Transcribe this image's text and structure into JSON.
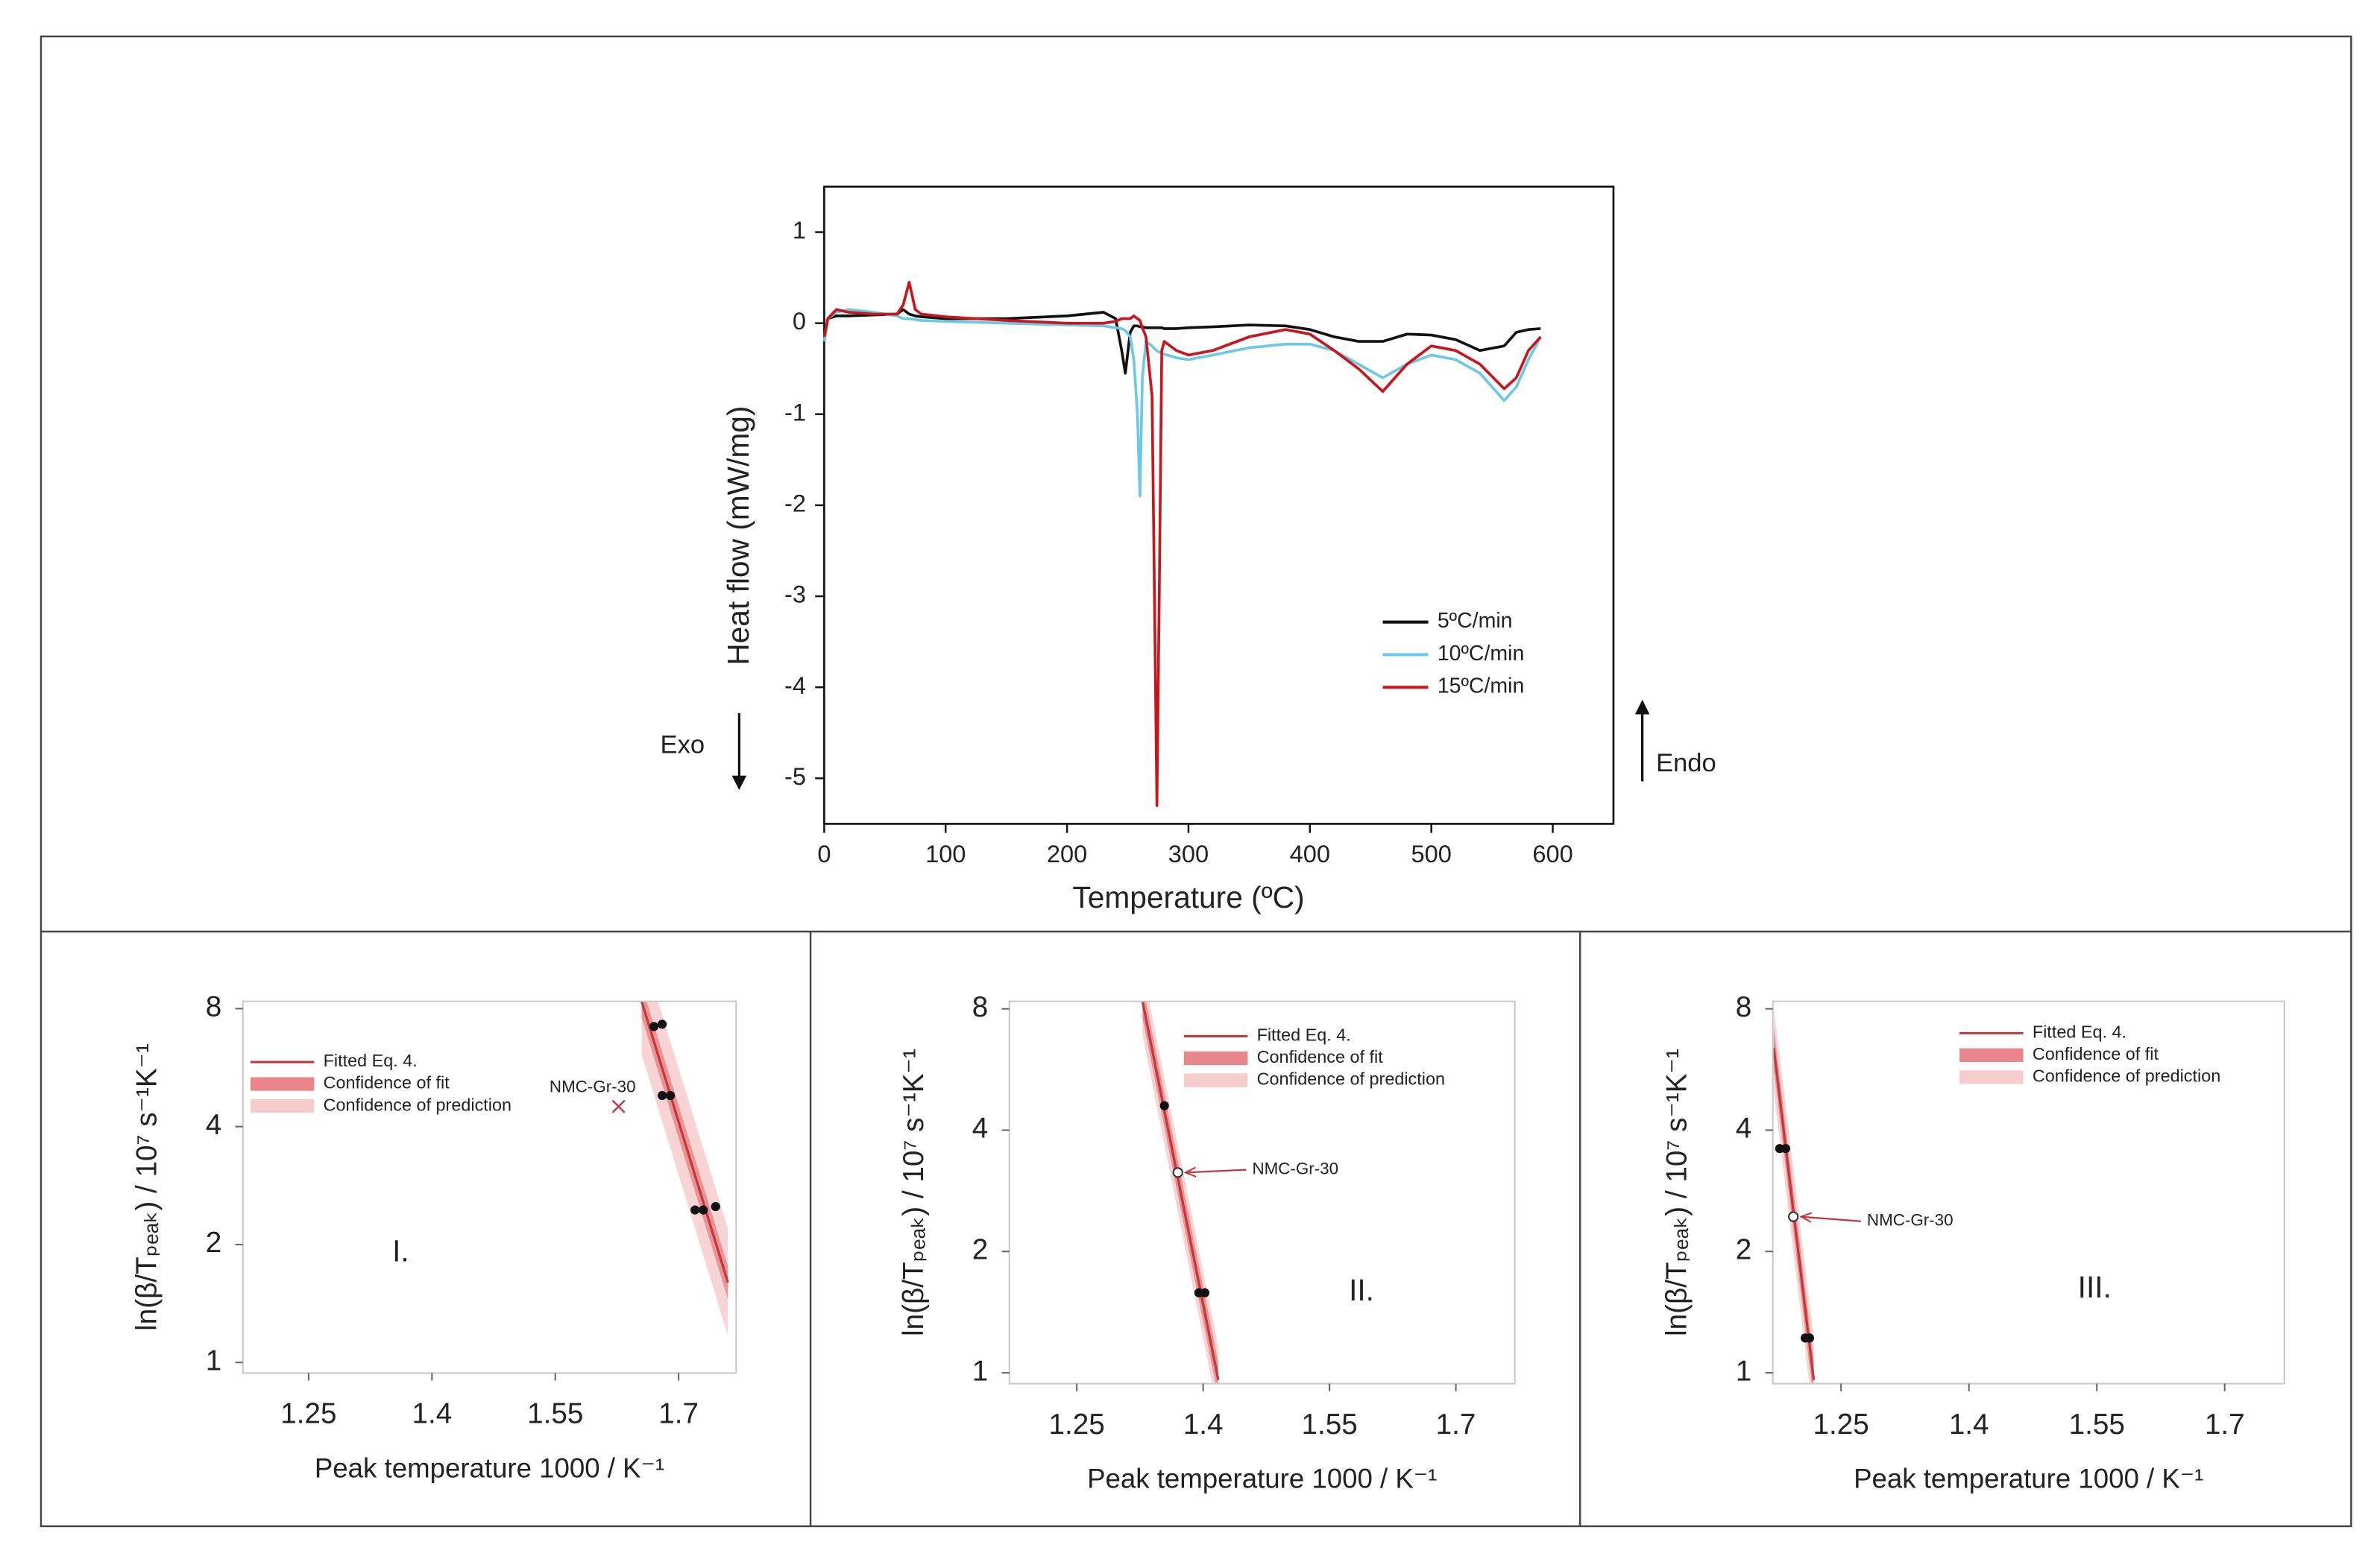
{
  "chart_data": [
    {
      "type": "line",
      "xlabel": "Temperature (ºC)",
      "ylabel": "Heat flow (mW/mg)",
      "annotations": [
        "Exo",
        "Endo"
      ],
      "xlim": [
        0,
        650
      ],
      "ylim": [
        -5.5,
        1.5
      ],
      "xticks": [
        0,
        100,
        200,
        300,
        400,
        500,
        600
      ],
      "yticks": [
        -5,
        -4,
        -3,
        -2,
        -1,
        0,
        1
      ],
      "x": [
        0,
        3,
        10,
        20,
        40,
        60,
        65,
        70,
        75,
        80,
        100,
        150,
        200,
        230,
        240,
        245,
        248,
        252,
        255,
        258,
        260,
        262,
        265,
        270,
        272,
        274,
        276,
        278,
        280,
        290,
        300,
        320,
        350,
        380,
        400,
        420,
        440,
        460,
        480,
        500,
        520,
        540,
        560,
        570,
        580,
        590
      ],
      "series": [
        {
          "name": "5ºC/min",
          "color": "#111111",
          "values": [
            -0.2,
            0.05,
            0.08,
            0.08,
            0.09,
            0.1,
            0.15,
            0.1,
            0.08,
            0.07,
            0.05,
            0.05,
            0.08,
            0.12,
            0.05,
            -0.3,
            -0.55,
            -0.1,
            -0.03,
            -0.03,
            -0.04,
            -0.04,
            -0.05,
            -0.05,
            -0.05,
            -0.05,
            -0.05,
            -0.05,
            -0.06,
            -0.06,
            -0.05,
            -0.04,
            -0.02,
            -0.03,
            -0.07,
            -0.15,
            -0.2,
            -0.2,
            -0.12,
            -0.13,
            -0.18,
            -0.3,
            -0.25,
            -0.1,
            -0.07,
            -0.06
          ]
        },
        {
          "name": "10ºC/min",
          "color": "#6cc8e6",
          "values": [
            -0.2,
            0.05,
            0.12,
            0.15,
            0.12,
            0.08,
            0.05,
            0.05,
            0.04,
            0.03,
            0.02,
            0,
            -0.02,
            -0.03,
            -0.05,
            -0.06,
            -0.08,
            -0.15,
            -0.4,
            -1.0,
            -1.9,
            -0.6,
            -0.2,
            -0.25,
            -0.28,
            -0.3,
            -0.32,
            -0.33,
            -0.34,
            -0.38,
            -0.4,
            -0.35,
            -0.27,
            -0.23,
            -0.23,
            -0.3,
            -0.45,
            -0.6,
            -0.45,
            -0.35,
            -0.4,
            -0.55,
            -0.85,
            -0.7,
            -0.4,
            -0.15
          ]
        },
        {
          "name": "15ºC/min",
          "color": "#c8161d",
          "values": [
            -0.15,
            0.05,
            0.15,
            0.12,
            0.1,
            0.1,
            0.2,
            0.45,
            0.15,
            0.1,
            0.07,
            0.03,
            0,
            0,
            0.02,
            0.05,
            0.05,
            0.05,
            0.08,
            0.05,
            0.03,
            -0.05,
            -0.15,
            -0.8,
            -3.0,
            -5.3,
            -2.9,
            -0.3,
            -0.2,
            -0.3,
            -0.35,
            -0.3,
            -0.15,
            -0.07,
            -0.12,
            -0.3,
            -0.5,
            -0.75,
            -0.45,
            -0.25,
            -0.3,
            -0.45,
            -0.72,
            -0.6,
            -0.3,
            -0.15
          ]
        }
      ]
    },
    {
      "type": "scatter",
      "panel_label": "I.",
      "xlabel": "Peak temperature 1000 / K⁻¹",
      "ylabel": "ln(β/Tₚₑₐₖ) / 10⁷ s⁻¹K⁻¹",
      "yscale": "log",
      "xlim": [
        1.17,
        1.77
      ],
      "ylim": [
        0.94,
        8.35
      ],
      "xticks": [
        1.25,
        1.4,
        1.55,
        1.7
      ],
      "yticks": [
        1,
        2,
        4,
        8
      ],
      "x": [
        1.67,
        1.68,
        1.68,
        1.69,
        1.72,
        1.73,
        1.745
      ],
      "values": [
        7.2,
        7.3,
        4.8,
        4.8,
        2.45,
        2.45,
        2.5
      ],
      "color": "#111111",
      "fit": {
        "name": "Fitted Eq. 4.",
        "color": "#c0393b",
        "x": [
          1.655,
          1.76
        ],
        "values": [
          8.35,
          1.6
        ]
      },
      "bands": [
        {
          "name": "Confidence of fit",
          "color": "#e8868a",
          "x": [
            1.655,
            1.76
          ],
          "lower": [
            7.6,
            1.45
          ],
          "upper": [
            9.2,
            1.76
          ]
        },
        {
          "name": "Confidence of prediction",
          "color": "#f7cccc",
          "x": [
            1.655,
            1.76
          ],
          "lower": [
            6.1,
            1.17
          ],
          "upper": [
            11.4,
            2.2
          ]
        }
      ],
      "annotation": {
        "text": "NMC-Gr-30",
        "marker": "x",
        "x": 1.627,
        "y": 4.5
      }
    },
    {
      "type": "scatter",
      "panel_label": "II.",
      "xlabel": "Peak temperature 1000 / K⁻¹",
      "ylabel": "ln(β/Tₚₑₐₖ) / 10⁷ s⁻¹K⁻¹",
      "yscale": "log",
      "xlim": [
        1.17,
        1.77
      ],
      "ylim": [
        0.94,
        8.35
      ],
      "xticks": [
        1.25,
        1.4,
        1.55,
        1.7
      ],
      "yticks": [
        1,
        2,
        4,
        8
      ],
      "x": [
        1.354,
        1.395,
        1.402
      ],
      "values": [
        4.6,
        1.58,
        1.58
      ],
      "color": "#111111",
      "fit": {
        "name": "Fitted Eq. 4.",
        "color": "#c0393b",
        "x": [
          1.328,
          1.418
        ],
        "values": [
          8.35,
          0.96
        ]
      },
      "bands": [
        {
          "name": "Confidence of fit",
          "color": "#e8868a",
          "x": [
            1.328,
            1.418
          ],
          "lower": [
            7.6,
            0.87
          ],
          "upper": [
            9.2,
            1.06
          ]
        },
        {
          "name": "Confidence of prediction",
          "color": "#f7cccc",
          "x": [
            1.328,
            1.418
          ],
          "lower": [
            6.9,
            0.79
          ],
          "upper": [
            10.1,
            1.16
          ]
        }
      ],
      "annotation": {
        "text": "NMC-Gr-30",
        "marker": "circle",
        "x": 1.37,
        "y": 3.14
      }
    },
    {
      "type": "scatter",
      "panel_label": "III.",
      "xlabel": "Peak temperature 1000 / K⁻¹",
      "ylabel": "ln(β/Tₚₑₐₖ) / 10⁷ s⁻¹K⁻¹",
      "yscale": "log",
      "xlim": [
        1.17,
        1.77
      ],
      "ylim": [
        0.94,
        8.35
      ],
      "xticks": [
        1.25,
        1.4,
        1.55,
        1.7
      ],
      "yticks": [
        1,
        2,
        4,
        8
      ],
      "x": [
        1.178,
        1.185,
        1.208,
        1.213
      ],
      "values": [
        3.6,
        3.6,
        1.22,
        1.22
      ],
      "color": "#111111",
      "fit": {
        "name": "Fitted Eq. 4.",
        "color": "#c0393b",
        "x": [
          1.171,
          1.218
        ],
        "values": [
          6.4,
          0.96
        ]
      },
      "bands": [
        {
          "name": "Confidence of fit",
          "color": "#e8868a",
          "x": [
            1.171,
            1.218
          ],
          "lower": [
            5.7,
            0.85
          ],
          "upper": [
            7.2,
            1.08
          ]
        },
        {
          "name": "Confidence of prediction",
          "color": "#f7cccc",
          "x": [
            1.171,
            1.218
          ],
          "lower": [
            5.0,
            0.76
          ],
          "upper": [
            8.1,
            1.22
          ]
        }
      ],
      "annotation": {
        "text": "NMC-Gr-30",
        "marker": "circle",
        "x": 1.194,
        "y": 2.44
      }
    }
  ]
}
